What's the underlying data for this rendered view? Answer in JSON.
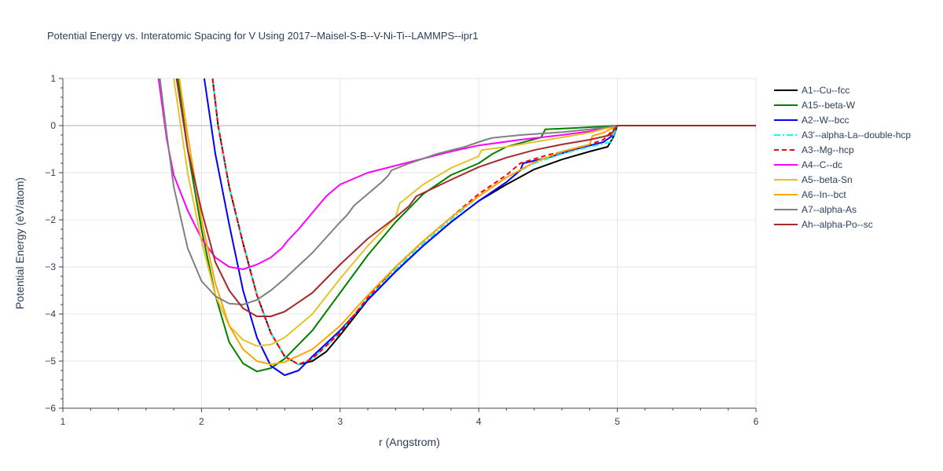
{
  "chart_data": {
    "type": "line",
    "title": "Potential Energy vs. Interatomic Spacing for V Using 2017--Maisel-S-B--V-Ni-Ti--LAMMPS--ipr1",
    "xlabel": "r (Angstrom)",
    "ylabel": "Potential Energy (eV/atom)",
    "xlim": [
      1,
      6
    ],
    "ylim": [
      -6,
      1
    ],
    "x_ticks": [
      "1",
      "2",
      "3",
      "4",
      "5",
      "6"
    ],
    "y_ticks": [
      "1",
      "0",
      "−1",
      "−2",
      "−3",
      "−4",
      "−5",
      "−6"
    ],
    "grid": true,
    "legend_position": "right",
    "series": [
      {
        "name": "A1--Cu--fcc",
        "color": "#000000",
        "dash": "solid",
        "points": [
          [
            2.08,
            1.0
          ],
          [
            2.12,
            0.0
          ],
          [
            2.2,
            -1.3
          ],
          [
            2.3,
            -2.5
          ],
          [
            2.4,
            -3.6
          ],
          [
            2.5,
            -4.4
          ],
          [
            2.6,
            -4.9
          ],
          [
            2.7,
            -5.07
          ],
          [
            2.8,
            -5.0
          ],
          [
            2.9,
            -4.8
          ],
          [
            3.0,
            -4.45
          ],
          [
            3.2,
            -3.7
          ],
          [
            3.4,
            -3.1
          ],
          [
            3.6,
            -2.55
          ],
          [
            3.8,
            -2.05
          ],
          [
            4.0,
            -1.6
          ],
          [
            4.2,
            -1.25
          ],
          [
            4.4,
            -0.93
          ],
          [
            4.6,
            -0.72
          ],
          [
            4.8,
            -0.55
          ],
          [
            4.93,
            -0.45
          ],
          [
            4.97,
            -0.25
          ],
          [
            5.0,
            0.0
          ],
          [
            6.0,
            0.0
          ]
        ]
      },
      {
        "name": "A15--beta-W",
        "color": "#008000",
        "dash": "solid",
        "points": [
          [
            1.83,
            1.0
          ],
          [
            1.9,
            -0.5
          ],
          [
            2.0,
            -2.2
          ],
          [
            2.1,
            -3.6
          ],
          [
            2.2,
            -4.6
          ],
          [
            2.3,
            -5.05
          ],
          [
            2.4,
            -5.22
          ],
          [
            2.5,
            -5.15
          ],
          [
            2.6,
            -4.95
          ],
          [
            2.8,
            -4.35
          ],
          [
            3.0,
            -3.55
          ],
          [
            3.2,
            -2.75
          ],
          [
            3.4,
            -2.05
          ],
          [
            3.6,
            -1.45
          ],
          [
            3.8,
            -1.05
          ],
          [
            4.0,
            -0.8
          ],
          [
            4.1,
            -0.6
          ],
          [
            4.2,
            -0.45
          ],
          [
            4.3,
            -0.37
          ],
          [
            4.45,
            -0.25
          ],
          [
            4.48,
            -0.08
          ],
          [
            4.7,
            -0.05
          ],
          [
            5.0,
            0.0
          ],
          [
            6.0,
            0.0
          ]
        ]
      },
      {
        "name": "A2--W--bcc",
        "color": "#0000ff",
        "dash": "solid",
        "points": [
          [
            2.02,
            1.0
          ],
          [
            2.1,
            -0.6
          ],
          [
            2.2,
            -2.1
          ],
          [
            2.3,
            -3.5
          ],
          [
            2.4,
            -4.5
          ],
          [
            2.5,
            -5.1
          ],
          [
            2.6,
            -5.3
          ],
          [
            2.7,
            -5.2
          ],
          [
            2.8,
            -4.9
          ],
          [
            3.0,
            -4.35
          ],
          [
            3.2,
            -3.7
          ],
          [
            3.4,
            -3.1
          ],
          [
            3.6,
            -2.55
          ],
          [
            3.8,
            -2.05
          ],
          [
            4.0,
            -1.6
          ],
          [
            4.2,
            -1.2
          ],
          [
            4.3,
            -0.95
          ],
          [
            4.32,
            -0.8
          ],
          [
            4.5,
            -0.68
          ],
          [
            4.7,
            -0.5
          ],
          [
            4.9,
            -0.35
          ],
          [
            4.97,
            -0.2
          ],
          [
            5.0,
            0.0
          ],
          [
            6.0,
            0.0
          ]
        ]
      },
      {
        "name": "A3'--alpha-La--double-hcp",
        "color": "#00ffff",
        "dash": "dashdot",
        "points": [
          [
            2.08,
            1.0
          ],
          [
            2.12,
            0.0
          ],
          [
            2.2,
            -1.3
          ],
          [
            2.3,
            -2.5
          ],
          [
            2.4,
            -3.6
          ],
          [
            2.5,
            -4.4
          ],
          [
            2.6,
            -4.9
          ],
          [
            2.7,
            -5.07
          ],
          [
            2.8,
            -4.95
          ],
          [
            3.0,
            -4.4
          ],
          [
            3.2,
            -3.65
          ],
          [
            3.4,
            -3.05
          ],
          [
            3.6,
            -2.5
          ],
          [
            3.8,
            -2.0
          ],
          [
            4.0,
            -1.5
          ],
          [
            4.2,
            -1.1
          ],
          [
            4.4,
            -0.8
          ],
          [
            4.6,
            -0.6
          ],
          [
            4.8,
            -0.45
          ],
          [
            4.95,
            -0.35
          ],
          [
            5.0,
            0.0
          ],
          [
            6.0,
            0.0
          ]
        ]
      },
      {
        "name": "A3--Mg--hcp",
        "color": "#ff0000",
        "dash": "dash",
        "points": [
          [
            2.08,
            1.0
          ],
          [
            2.12,
            0.0
          ],
          [
            2.2,
            -1.3
          ],
          [
            2.3,
            -2.5
          ],
          [
            2.4,
            -3.6
          ],
          [
            2.5,
            -4.4
          ],
          [
            2.6,
            -4.9
          ],
          [
            2.7,
            -5.07
          ],
          [
            2.8,
            -4.95
          ],
          [
            3.0,
            -4.4
          ],
          [
            3.2,
            -3.65
          ],
          [
            3.4,
            -3.0
          ],
          [
            3.6,
            -2.45
          ],
          [
            3.8,
            -1.95
          ],
          [
            4.0,
            -1.45
          ],
          [
            4.2,
            -1.05
          ],
          [
            4.3,
            -0.8
          ],
          [
            4.5,
            -0.62
          ],
          [
            4.7,
            -0.5
          ],
          [
            4.9,
            -0.3
          ],
          [
            5.0,
            0.0
          ],
          [
            6.0,
            0.0
          ]
        ]
      },
      {
        "name": "A4--C--dc",
        "color": "#ff00ff",
        "dash": "solid",
        "points": [
          [
            1.69,
            1.0
          ],
          [
            1.75,
            -0.3
          ],
          [
            1.8,
            -1.05
          ],
          [
            1.9,
            -1.8
          ],
          [
            2.0,
            -2.4
          ],
          [
            2.1,
            -2.8
          ],
          [
            2.2,
            -3.0
          ],
          [
            2.3,
            -3.05
          ],
          [
            2.4,
            -2.95
          ],
          [
            2.5,
            -2.8
          ],
          [
            2.58,
            -2.6
          ],
          [
            2.62,
            -2.45
          ],
          [
            2.7,
            -2.2
          ],
          [
            2.8,
            -1.85
          ],
          [
            2.9,
            -1.5
          ],
          [
            3.0,
            -1.25
          ],
          [
            3.2,
            -1.0
          ],
          [
            3.4,
            -0.85
          ],
          [
            3.6,
            -0.7
          ],
          [
            3.8,
            -0.55
          ],
          [
            4.0,
            -0.42
          ],
          [
            4.3,
            -0.3
          ],
          [
            4.6,
            -0.2
          ],
          [
            4.8,
            -0.12
          ],
          [
            5.0,
            0.0
          ],
          [
            6.0,
            0.0
          ]
        ]
      },
      {
        "name": "A5--beta-Sn",
        "color": "#e6c229",
        "dash": "solid",
        "points": [
          [
            1.8,
            1.0
          ],
          [
            1.85,
            0.0
          ],
          [
            1.9,
            -1.0
          ],
          [
            2.0,
            -2.45
          ],
          [
            2.1,
            -3.6
          ],
          [
            2.2,
            -4.25
          ],
          [
            2.3,
            -4.55
          ],
          [
            2.4,
            -4.68
          ],
          [
            2.5,
            -4.65
          ],
          [
            2.6,
            -4.5
          ],
          [
            2.8,
            -4.0
          ],
          [
            3.0,
            -3.25
          ],
          [
            3.2,
            -2.55
          ],
          [
            3.4,
            -1.95
          ],
          [
            3.43,
            -1.65
          ],
          [
            3.6,
            -1.25
          ],
          [
            3.8,
            -0.9
          ],
          [
            4.0,
            -0.65
          ],
          [
            4.02,
            -0.52
          ],
          [
            4.2,
            -0.45
          ],
          [
            4.4,
            -0.35
          ],
          [
            4.6,
            -0.25
          ],
          [
            4.8,
            -0.15
          ],
          [
            5.0,
            0.0
          ],
          [
            6.0,
            0.0
          ]
        ]
      },
      {
        "name": "A6--In--bct",
        "color": "#ffa500",
        "dash": "solid",
        "points": [
          [
            1.84,
            1.0
          ],
          [
            1.9,
            -0.2
          ],
          [
            2.0,
            -2.0
          ],
          [
            2.1,
            -3.35
          ],
          [
            2.2,
            -4.25
          ],
          [
            2.3,
            -4.75
          ],
          [
            2.4,
            -5.0
          ],
          [
            2.5,
            -5.07
          ],
          [
            2.6,
            -5.02
          ],
          [
            2.8,
            -4.75
          ],
          [
            3.0,
            -4.25
          ],
          [
            3.2,
            -3.6
          ],
          [
            3.4,
            -3.0
          ],
          [
            3.6,
            -2.45
          ],
          [
            3.8,
            -1.95
          ],
          [
            4.0,
            -1.5
          ],
          [
            4.2,
            -1.1
          ],
          [
            4.4,
            -0.78
          ],
          [
            4.6,
            -0.55
          ],
          [
            4.8,
            -0.4
          ],
          [
            4.82,
            -0.22
          ],
          [
            4.9,
            -0.15
          ],
          [
            5.0,
            0.0
          ],
          [
            6.0,
            0.0
          ]
        ]
      },
      {
        "name": "A7--alpha-As",
        "color": "#808080",
        "dash": "solid",
        "points": [
          [
            1.7,
            1.0
          ],
          [
            1.75,
            -0.2
          ],
          [
            1.8,
            -1.3
          ],
          [
            1.9,
            -2.6
          ],
          [
            2.0,
            -3.3
          ],
          [
            2.1,
            -3.62
          ],
          [
            2.2,
            -3.78
          ],
          [
            2.3,
            -3.8
          ],
          [
            2.4,
            -3.7
          ],
          [
            2.5,
            -3.5
          ],
          [
            2.6,
            -3.25
          ],
          [
            2.8,
            -2.7
          ],
          [
            3.0,
            -2.05
          ],
          [
            3.05,
            -1.9
          ],
          [
            3.1,
            -1.7
          ],
          [
            3.2,
            -1.45
          ],
          [
            3.3,
            -1.2
          ],
          [
            3.35,
            -1.05
          ],
          [
            3.37,
            -0.95
          ],
          [
            3.5,
            -0.8
          ],
          [
            3.7,
            -0.6
          ],
          [
            3.9,
            -0.45
          ],
          [
            4.05,
            -0.3
          ],
          [
            4.1,
            -0.26
          ],
          [
            4.3,
            -0.2
          ],
          [
            4.6,
            -0.14
          ],
          [
            4.8,
            -0.08
          ],
          [
            5.0,
            0.0
          ],
          [
            6.0,
            0.0
          ]
        ]
      },
      {
        "name": "Ah--alpha-Po--sc",
        "color": "#a52a2a",
        "dash": "solid",
        "points": [
          [
            1.82,
            1.0
          ],
          [
            1.9,
            -0.5
          ],
          [
            2.0,
            -1.8
          ],
          [
            2.1,
            -2.9
          ],
          [
            2.2,
            -3.5
          ],
          [
            2.3,
            -3.88
          ],
          [
            2.4,
            -4.05
          ],
          [
            2.5,
            -4.05
          ],
          [
            2.6,
            -3.95
          ],
          [
            2.8,
            -3.55
          ],
          [
            3.0,
            -2.95
          ],
          [
            3.2,
            -2.4
          ],
          [
            3.4,
            -1.95
          ],
          [
            3.5,
            -1.7
          ],
          [
            3.55,
            -1.5
          ],
          [
            3.8,
            -1.15
          ],
          [
            4.0,
            -0.88
          ],
          [
            4.2,
            -0.68
          ],
          [
            4.4,
            -0.52
          ],
          [
            4.6,
            -0.4
          ],
          [
            4.8,
            -0.3
          ],
          [
            4.95,
            -0.2
          ],
          [
            5.0,
            0.0
          ],
          [
            6.0,
            0.0
          ]
        ]
      }
    ]
  }
}
